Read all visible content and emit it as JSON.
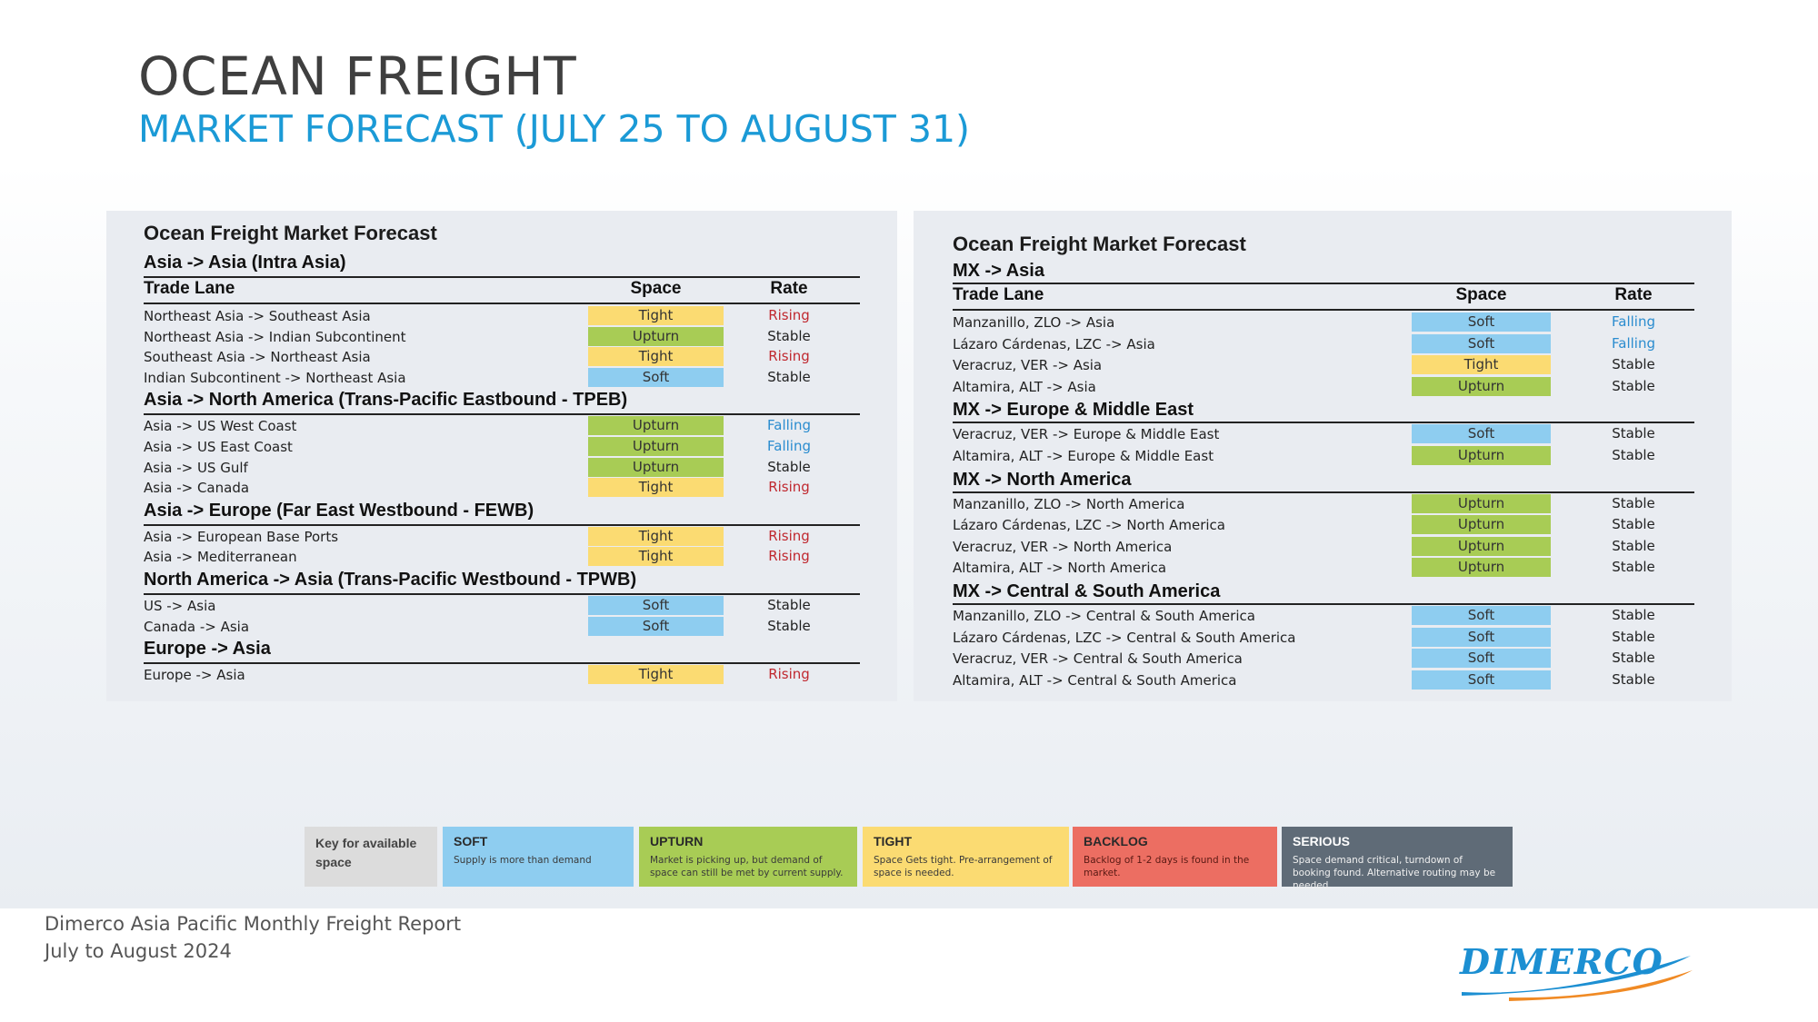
{
  "title": "OCEAN FREIGHT",
  "subtitle": "MARKET FORECAST (JULY 25 TO AUGUST 31)",
  "colors": {
    "soft": "#8ecdf0",
    "upturn": "#a8cc55",
    "tight": "#fbdb72",
    "backlog": "#ec6e62",
    "serious": "#5f6b77",
    "rising": "#c0282f",
    "falling": "#2a8ccf",
    "stable": "#1f1f1f"
  },
  "left_panel": {
    "title": "Ocean Freight Market Forecast",
    "headers": {
      "lane": "Trade Lane",
      "space": "Space",
      "rate": "Rate"
    },
    "sections": [
      {
        "name": "Asia -> Asia (Intra Asia)",
        "rows": [
          {
            "lane": "Northeast Asia -> Southeast Asia",
            "space": "Tight",
            "rate": "Rising"
          },
          {
            "lane": "Northeast Asia -> Indian Subcontinent",
            "space": "Upturn",
            "rate": "Stable"
          },
          {
            "lane": "Southeast Asia -> Northeast Asia",
            "space": "Tight",
            "rate": "Rising"
          },
          {
            "lane": "Indian Subcontinent -> Northeast Asia",
            "space": "Soft",
            "rate": "Stable"
          }
        ]
      },
      {
        "name": "Asia -> North America (Trans-Pacific Eastbound - TPEB)",
        "rows": [
          {
            "lane": "Asia -> US West Coast",
            "space": "Upturn",
            "rate": "Falling"
          },
          {
            "lane": "Asia -> US East Coast",
            "space": "Upturn",
            "rate": "Falling"
          },
          {
            "lane": "Asia -> US Gulf",
            "space": "Upturn",
            "rate": "Stable"
          },
          {
            "lane": "Asia -> Canada",
            "space": "Tight",
            "rate": "Rising"
          }
        ]
      },
      {
        "name": "Asia -> Europe (Far East Westbound - FEWB)",
        "rows": [
          {
            "lane": "Asia -> European Base Ports",
            "space": "Tight",
            "rate": "Rising"
          },
          {
            "lane": "Asia -> Mediterranean",
            "space": "Tight",
            "rate": "Rising"
          }
        ]
      },
      {
        "name": "North America  -> Asia (Trans-Pacific Westbound - TPWB)",
        "rows": [
          {
            "lane": "US -> Asia",
            "space": "Soft",
            "rate": "Stable"
          },
          {
            "lane": "Canada -> Asia",
            "space": "Soft",
            "rate": "Stable"
          }
        ]
      },
      {
        "name": "Europe -> Asia",
        "rows": [
          {
            "lane": "Europe -> Asia",
            "space": "Tight",
            "rate": "Rising"
          }
        ]
      }
    ]
  },
  "right_panel": {
    "title": "Ocean Freight Market Forecast",
    "headers": {
      "lane": "Trade Lane",
      "space": "Space",
      "rate": "Rate"
    },
    "sections": [
      {
        "name": "MX -> Asia",
        "rows": [
          {
            "lane": "Manzanillo, ZLO -> Asia",
            "space": "Soft",
            "rate": "Falling"
          },
          {
            "lane": "Lázaro Cárdenas, LZC -> Asia",
            "space": "Soft",
            "rate": "Falling"
          },
          {
            "lane": "Veracruz, VER -> Asia",
            "space": "Tight",
            "rate": "Stable"
          },
          {
            "lane": "Altamira, ALT -> Asia",
            "space": "Upturn",
            "rate": "Stable"
          }
        ]
      },
      {
        "name": "MX -> Europe & Middle East",
        "rows": [
          {
            "lane": "Veracruz, VER -> Europe & Middle East",
            "space": "Soft",
            "rate": "Stable"
          },
          {
            "lane": "Altamira, ALT -> Europe & Middle East",
            "space": "Upturn",
            "rate": "Stable"
          }
        ]
      },
      {
        "name": "MX -> North America",
        "rows": [
          {
            "lane": "Manzanillo, ZLO -> North America",
            "space": "Upturn",
            "rate": "Stable"
          },
          {
            "lane": "Lázaro Cárdenas, LZC -> North America",
            "space": "Upturn",
            "rate": "Stable"
          },
          {
            "lane": "Veracruz, VER -> North America",
            "space": "Upturn",
            "rate": "Stable"
          },
          {
            "lane": "Altamira, ALT -> North America",
            "space": "Upturn",
            "rate": "Stable"
          }
        ]
      },
      {
        "name": "MX -> Central & South America",
        "rows": [
          {
            "lane": "Manzanillo, ZLO -> Central & South America",
            "space": "Soft",
            "rate": "Stable"
          },
          {
            "lane": "Lázaro Cárdenas, LZC -> Central & South America",
            "space": "Soft",
            "rate": "Stable"
          },
          {
            "lane": "Veracruz, VER -> Central & South America",
            "space": "Soft",
            "rate": "Stable"
          },
          {
            "lane": "Altamira, ALT -> Central & South America",
            "space": "Soft",
            "rate": "Stable"
          }
        ]
      }
    ]
  },
  "legend": {
    "key_label": "Key for available space",
    "items": [
      {
        "title": "SOFT",
        "desc": "Supply is more than demand",
        "color": "#8ecdf0"
      },
      {
        "title": "UPTURN",
        "desc": "Market is picking  up, but demand of space can still be met by current supply.",
        "color": "#a8cc55"
      },
      {
        "title": "TIGHT",
        "desc": "Space Gets tight. Pre-arrangement of space is needed.",
        "color": "#fbdb72"
      },
      {
        "title": "BACKLOG",
        "desc": "Backlog of 1-2 days is found in the market.",
        "color": "#ec6e62"
      },
      {
        "title": "SERIOUS",
        "desc": "Space demand critical, turndown of booking found. Alternative routing may be needed.",
        "color": "#5f6b77"
      }
    ]
  },
  "footer": {
    "line1": "Dimerco Asia Pacific Monthly Freight Report",
    "line2": "July to August 2024"
  },
  "logo": {
    "text": "DIMERCO"
  }
}
